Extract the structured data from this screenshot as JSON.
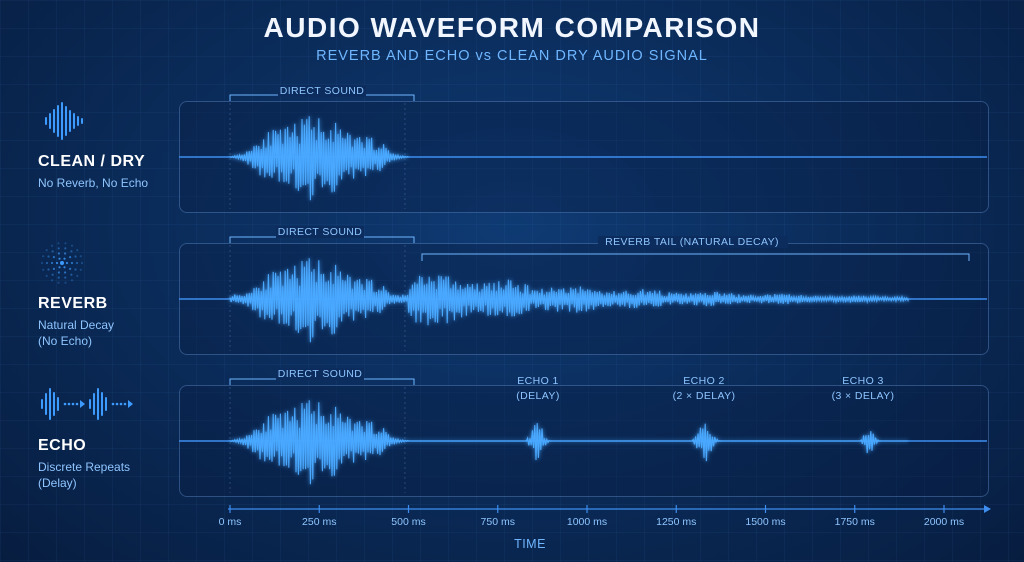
{
  "header": {
    "title": "AUDIO WAVEFORM COMPARISON",
    "subtitle": "REVERB AND ECHO vs CLEAN DRY AUDIO SIGNAL"
  },
  "rows": [
    {
      "name": "CLEAN / DRY",
      "desc1": "No Reverb, No Echo",
      "desc2": "",
      "icon": "waveform-icon"
    },
    {
      "name": "REVERB",
      "desc1": "Natural Decay",
      "desc2": "(No Echo)",
      "icon": "dot-ripple-icon"
    },
    {
      "name": "ECHO",
      "desc1": "Discrete Repeats",
      "desc2": "(Delay)",
      "icon": "echo-repeat-icon"
    }
  ],
  "annotations": {
    "direct_sound": "DIRECT SOUND",
    "reverb_tail": "REVERB TAIL (NATURAL DECAY)",
    "echo1_line1": "ECHO 1",
    "echo1_line2": "(DELAY)",
    "echo2_line1": "ECHO 2",
    "echo2_line2": "(2 × DELAY)",
    "echo3_line1": "ECHO 3",
    "echo3_line2": "(3 × DELAY)"
  },
  "axis": {
    "title": "TIME",
    "ticks": [
      "0 ms",
      "250 ms",
      "500 ms",
      "750 ms",
      "1000 ms",
      "1250 ms",
      "1500 ms",
      "1750 ms",
      "2000 ms"
    ],
    "tick_values_ms": [
      0,
      250,
      500,
      750,
      1000,
      1250,
      1500,
      1750,
      2000
    ],
    "range_ms": [
      0,
      2000
    ]
  },
  "chart_data": {
    "type": "line",
    "title": "AUDIO WAVEFORM COMPARISON",
    "xlabel": "TIME",
    "x_unit": "ms",
    "xlim": [
      0,
      2000
    ],
    "series": [
      {
        "name": "CLEAN / DRY",
        "segments_ms": [
          [
            0,
            500
          ]
        ]
      },
      {
        "name": "REVERB",
        "segments_ms": [
          [
            0,
            500
          ],
          [
            500,
            2000
          ]
        ]
      },
      {
        "name": "ECHO",
        "segments_ms": [
          [
            0,
            500
          ],
          [
            850,
            950
          ],
          [
            1300,
            1420
          ],
          [
            1760,
            1850
          ]
        ]
      }
    ]
  },
  "colors": {
    "accent": "#3d9bff",
    "wave_bright": "#4aa8ff",
    "label_blue": "#8fc5ff"
  }
}
